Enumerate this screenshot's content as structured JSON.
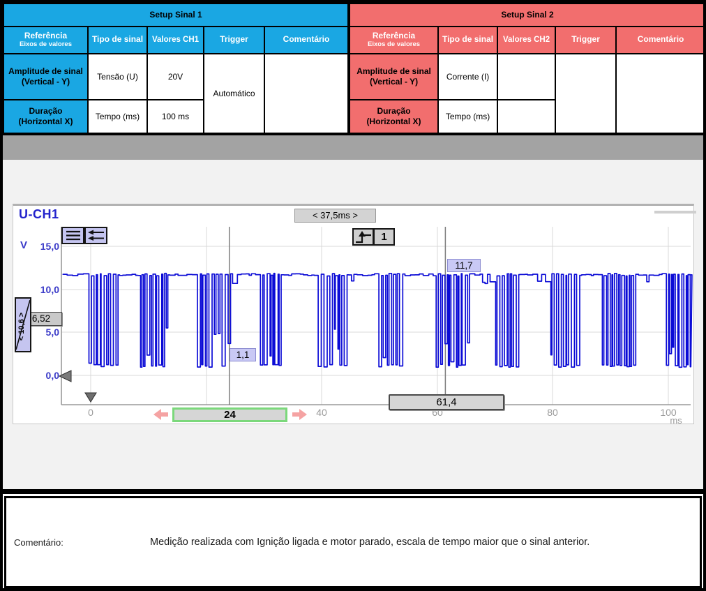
{
  "tables": {
    "sinal1": {
      "title": "Setup Sinal 1",
      "accent": "#1aa7e3",
      "headers": {
        "referencia_line1": "Referência",
        "referencia_line2": "Eixos de valores",
        "tipo": "Tipo de sinal",
        "valores": "Valores CH1",
        "trigger": "Trigger",
        "comentario": "Comentário"
      },
      "rows": [
        {
          "ref_line1": "Amplitude de sinal",
          "ref_line2": "(Vertical - Y)",
          "tipo": "Tensão (U)",
          "valor": "20V"
        },
        {
          "ref_line1": "Duração",
          "ref_line2": "(Horizontal X)",
          "tipo": "Tempo (ms)",
          "valor": "100 ms"
        }
      ],
      "trigger_value": "Automático",
      "comment_value": ""
    },
    "sinal2": {
      "title": "Setup Sinal 2",
      "accent": "#f26e6e",
      "headers": {
        "referencia_line1": "Referência",
        "referencia_line2": "Eixos de valores",
        "tipo": "Tipo de sinal",
        "valores": "Valores CH2",
        "trigger": "Trigger",
        "comentario": "Comentário"
      },
      "rows": [
        {
          "ref_line1": "Amplitude de sinal",
          "ref_line2": "(Vertical - Y)",
          "tipo": "Corrente (I)",
          "valor": ""
        },
        {
          "ref_line1": "Duração",
          "ref_line2": "(Horizontal X)",
          "tipo": "Tempo (ms)",
          "valor": ""
        }
      ],
      "trigger_value": "",
      "comment_value": ""
    }
  },
  "scope": {
    "channel_label": "U-CH1",
    "delta_button": "< 37,5ms >",
    "y_axis_unit": "V",
    "x_axis_unit": "ms",
    "y_ticks": [
      "15,0",
      "10,0",
      "5,0",
      "0,0"
    ],
    "x_ticks": [
      "0",
      "20",
      "40",
      "60",
      "80",
      "100"
    ],
    "trigger_channel": "1",
    "labels": {
      "high_value": "11,7",
      "low_value": "1,1",
      "level_value": "6,52",
      "position_value": "< 10,6 >",
      "cursor_a": "24",
      "cursor_b": "61,4"
    },
    "signal_color": "#0b0bd6"
  },
  "chart_data": {
    "type": "line",
    "title": "U-CH1",
    "xlabel": "ms",
    "ylabel": "V",
    "x_ticks": [
      0,
      20,
      40,
      60,
      80,
      100
    ],
    "y_ticks": [
      15.0,
      10.0,
      5.0,
      0.0
    ],
    "xlim": [
      -5,
      104
    ],
    "ylim": [
      -3.4,
      17.3
    ],
    "grid": true,
    "legend": "none",
    "series_description": "Square-wave data-bus voltage: high plateaus at 11.7 V interrupted by dense burst frames toggling between 11.7 V and 1.1 V",
    "signal": {
      "high": 11.7,
      "low": 1.1,
      "start_ms": -4.8,
      "end_ms": 103.9,
      "bursts_ms": [
        [
          -1.2,
          4.5
        ],
        [
          8.6,
          13.5
        ],
        [
          18.4,
          24.5
        ],
        [
          28.7,
          33.1
        ],
        [
          38.9,
          44.3
        ],
        [
          49.2,
          53.6
        ],
        [
          59.3,
          65.3
        ],
        [
          69.3,
          73.7
        ],
        [
          78.9,
          84.9
        ],
        [
          88.3,
          94.3
        ],
        [
          99.6,
          103.9
        ]
      ],
      "seed": 7
    },
    "cursors_ms": [
      24,
      61.4
    ],
    "cursor_delta_label": "< 37,5ms >",
    "trigger_level": 6.52,
    "trigger_channel": 1,
    "annotations": [
      "11,7",
      "1,1",
      "6,52",
      "24",
      "61,4"
    ]
  },
  "comment": {
    "label": "Comentário:",
    "text": "Medição realizada com Ignição ligada e motor parado, escala de tempo maior que o sinal anterior."
  }
}
